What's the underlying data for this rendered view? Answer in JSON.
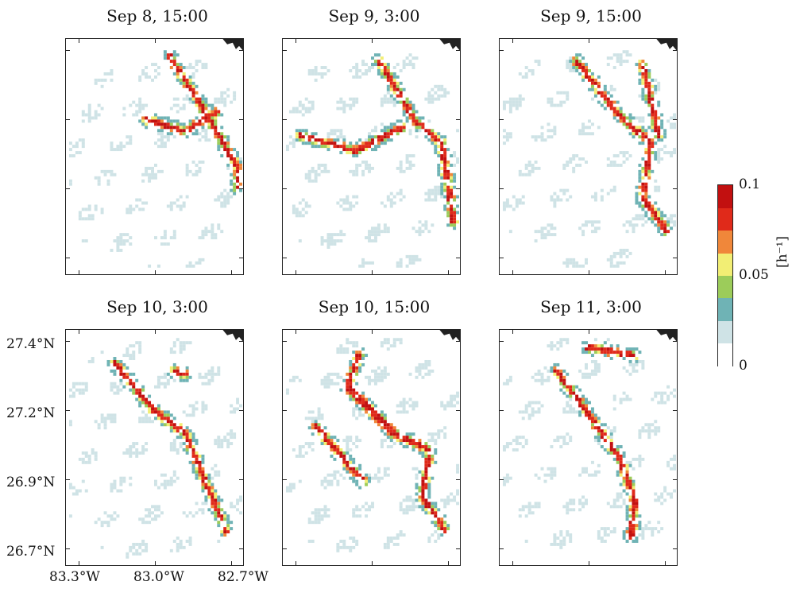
{
  "figure": {
    "panels": [
      {
        "title": "Sep 8, 15:00"
      },
      {
        "title": "Sep 9, 3:00"
      },
      {
        "title": "Sep 9, 15:00"
      },
      {
        "title": "Sep 10, 3:00"
      },
      {
        "title": "Sep 10, 15:00"
      },
      {
        "title": "Sep 11, 3:00"
      }
    ],
    "lat_ticks": [
      "27.4°N",
      "27.2°N",
      "26.9°N",
      "26.7°N"
    ],
    "lon_ticks": [
      "83.3°W",
      "83.0°W",
      "82.7°W"
    ],
    "colorbar": {
      "max_label": "0.1",
      "mid_label": "0.05",
      "min_label": "0",
      "unit": "[h⁻¹]",
      "colors": [
        "#ffffff",
        "#cfe3e6",
        "#6fb3b5",
        "#9ccc5a",
        "#f2ee74",
        "#f0873a",
        "#e02a1a",
        "#c21010"
      ]
    }
  },
  "chart_data": {
    "type": "heatmap",
    "xlabel": "",
    "ylabel": "",
    "x_ticks": [
      "83.3°W",
      "83.0°W",
      "82.7°W"
    ],
    "y_ticks": [
      "27.4°N",
      "27.2°N",
      "26.9°N",
      "26.7°N"
    ],
    "colorbar_range": [
      0,
      0.1
    ],
    "colorbar_ticks": [
      0,
      0.05,
      0.1
    ],
    "colorbar_unit": "[h⁻¹]",
    "panels": [
      "Sep 8, 15:00",
      "Sep 9, 3:00",
      "Sep 9, 15:00",
      "Sep 10, 3:00",
      "Sep 10, 15:00",
      "Sep 11, 3:00"
    ]
  }
}
